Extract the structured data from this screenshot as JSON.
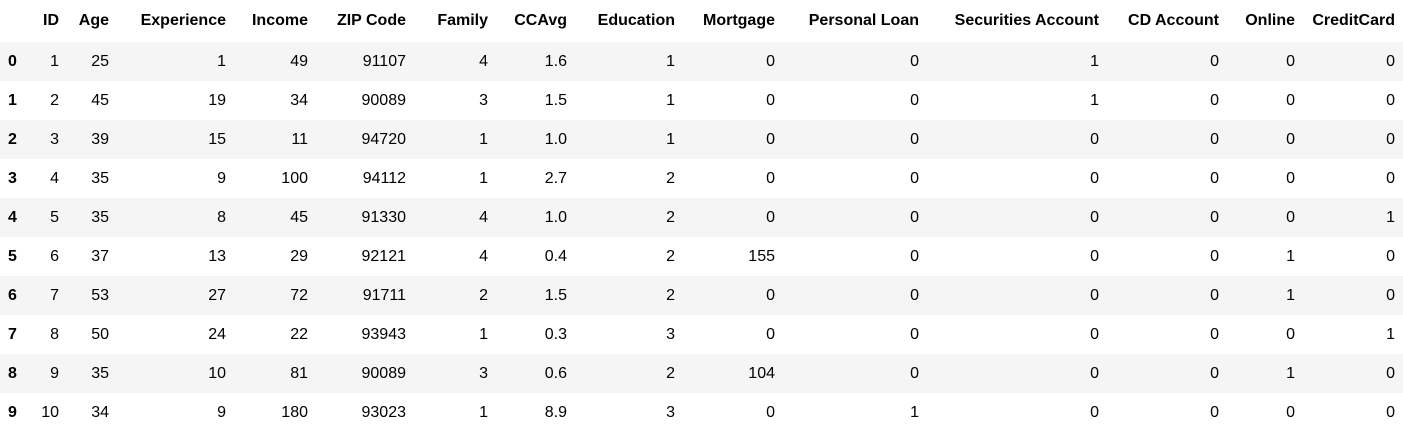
{
  "table": {
    "columns": [
      "",
      "ID",
      "Age",
      "Experience",
      "Income",
      "ZIP Code",
      "Family",
      "CCAvg",
      "Education",
      "Mortgage",
      "Personal Loan",
      "Securities Account",
      "CD Account",
      "Online",
      "CreditCard"
    ],
    "rows": [
      [
        "0",
        "1",
        "25",
        "1",
        "49",
        "91107",
        "4",
        "1.6",
        "1",
        "0",
        "0",
        "1",
        "0",
        "0",
        "0"
      ],
      [
        "1",
        "2",
        "45",
        "19",
        "34",
        "90089",
        "3",
        "1.5",
        "1",
        "0",
        "0",
        "1",
        "0",
        "0",
        "0"
      ],
      [
        "2",
        "3",
        "39",
        "15",
        "11",
        "94720",
        "1",
        "1.0",
        "1",
        "0",
        "0",
        "0",
        "0",
        "0",
        "0"
      ],
      [
        "3",
        "4",
        "35",
        "9",
        "100",
        "94112",
        "1",
        "2.7",
        "2",
        "0",
        "0",
        "0",
        "0",
        "0",
        "0"
      ],
      [
        "4",
        "5",
        "35",
        "8",
        "45",
        "91330",
        "4",
        "1.0",
        "2",
        "0",
        "0",
        "0",
        "0",
        "0",
        "1"
      ],
      [
        "5",
        "6",
        "37",
        "13",
        "29",
        "92121",
        "4",
        "0.4",
        "2",
        "155",
        "0",
        "0",
        "0",
        "1",
        "0"
      ],
      [
        "6",
        "7",
        "53",
        "27",
        "72",
        "91711",
        "2",
        "1.5",
        "2",
        "0",
        "0",
        "0",
        "0",
        "1",
        "0"
      ],
      [
        "7",
        "8",
        "50",
        "24",
        "22",
        "93943",
        "1",
        "0.3",
        "3",
        "0",
        "0",
        "0",
        "0",
        "0",
        "1"
      ],
      [
        "8",
        "9",
        "35",
        "10",
        "81",
        "90089",
        "3",
        "0.6",
        "2",
        "104",
        "0",
        "0",
        "0",
        "1",
        "0"
      ],
      [
        "9",
        "10",
        "34",
        "9",
        "180",
        "93023",
        "1",
        "8.9",
        "3",
        "0",
        "1",
        "0",
        "0",
        "0",
        "0"
      ]
    ]
  },
  "colors": {
    "stripe": "#f5f5f5",
    "text": "#000000",
    "background": "#ffffff"
  }
}
